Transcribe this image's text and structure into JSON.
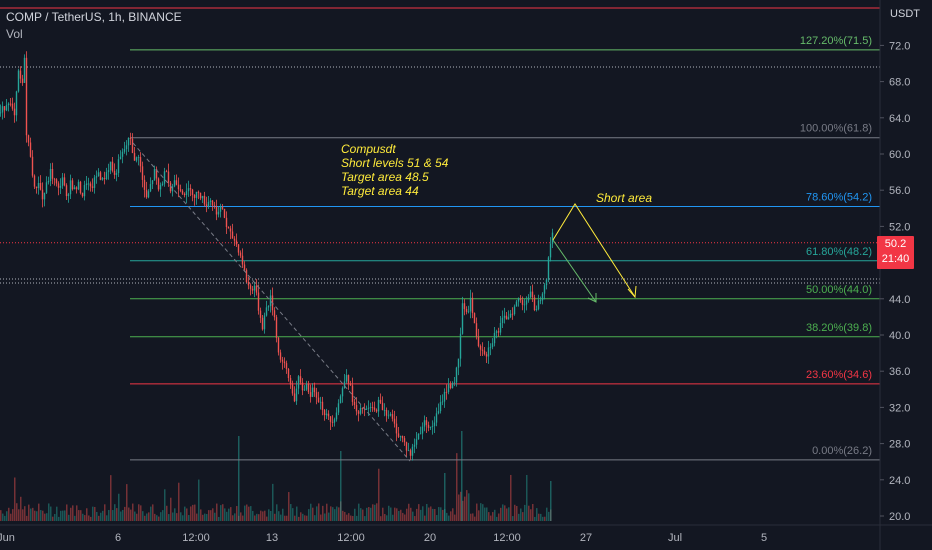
{
  "header": {
    "symbol_line": "COMP / TetherUS, 1h, BINANCE",
    "indicator": "Vol"
  },
  "price_axis": {
    "unit": "USDT",
    "ticks": [
      "72.0",
      "68.0",
      "64.0",
      "60.0",
      "56.0",
      "52.0",
      "48.0",
      "44.0",
      "40.0",
      "36.0",
      "32.0",
      "28.0",
      "24.0",
      "20.0"
    ]
  },
  "time_axis": {
    "ticks": [
      "Jun",
      "6",
      "12:00",
      "13",
      "12:00",
      "20",
      "12:00",
      "27",
      "Jul",
      "5"
    ]
  },
  "current_price": {
    "price": "50.2",
    "countdown": "21:40",
    "color": "#f23645"
  },
  "fib_levels": [
    {
      "label": "127.20%(71.5)",
      "value": 71.5,
      "color": "#66bb6a"
    },
    {
      "label": "100.00%(61.8)",
      "value": 61.8,
      "color": "#787b86"
    },
    {
      "label": "78.60%(54.2)",
      "value": 54.2,
      "color": "#2196f3"
    },
    {
      "label": "61.80%(48.2)",
      "value": 48.2,
      "color": "#26a69a"
    },
    {
      "label": "50.00%(44.0)",
      "value": 44.0,
      "color": "#4caf50"
    },
    {
      "label": "38.20%(39.8)",
      "value": 39.8,
      "color": "#4caf50"
    },
    {
      "label": "23.60%(34.6)",
      "value": 34.6,
      "color": "#f23645"
    },
    {
      "label": "0.00%(26.2)",
      "value": 26.2,
      "color": "#787b86"
    }
  ],
  "annotations": {
    "note_lines": [
      "Compusdt",
      "Short levels 51 & 54",
      "Target area 48.5",
      "Target area 44"
    ],
    "short_area": "Short area",
    "text_color": "#ffeb3b"
  },
  "chart_data": {
    "type": "candlestick",
    "y_range": [
      19.5,
      76.0
    ],
    "price_path": [
      [
        0,
        64.5
      ],
      [
        8,
        66
      ],
      [
        14,
        64
      ],
      [
        18,
        69
      ],
      [
        22,
        67.5
      ],
      [
        24,
        71
      ],
      [
        26,
        62
      ],
      [
        30,
        60
      ],
      [
        34,
        56
      ],
      [
        38,
        57
      ],
      [
        42,
        55
      ],
      [
        46,
        56.5
      ],
      [
        50,
        58
      ],
      [
        54,
        57
      ],
      [
        58,
        56
      ],
      [
        62,
        57.5
      ],
      [
        66,
        55
      ],
      [
        70,
        57
      ],
      [
        74,
        56
      ],
      [
        78,
        56.5
      ],
      [
        82,
        55.5
      ],
      [
        86,
        57
      ],
      [
        90,
        56
      ],
      [
        94,
        57
      ],
      [
        98,
        58
      ],
      [
        102,
        57
      ],
      [
        106,
        58
      ],
      [
        110,
        59
      ],
      [
        114,
        57.5
      ],
      [
        118,
        59
      ],
      [
        122,
        60
      ],
      [
        126,
        61
      ],
      [
        130,
        61.8
      ],
      [
        134,
        59
      ],
      [
        138,
        60
      ],
      [
        142,
        57
      ],
      [
        146,
        55
      ],
      [
        150,
        56.5
      ],
      [
        154,
        58
      ],
      [
        158,
        56
      ],
      [
        162,
        57
      ],
      [
        166,
        58.5
      ],
      [
        170,
        56
      ],
      [
        174,
        57
      ],
      [
        178,
        56.5
      ],
      [
        182,
        56
      ],
      [
        186,
        55.5
      ],
      [
        190,
        56.5
      ],
      [
        194,
        55
      ],
      [
        198,
        56
      ],
      [
        202,
        55
      ],
      [
        206,
        54.5
      ],
      [
        210,
        55
      ],
      [
        214,
        54
      ],
      [
        218,
        53.5
      ],
      [
        222,
        54
      ],
      [
        226,
        52
      ],
      [
        230,
        51
      ],
      [
        234,
        50.5
      ],
      [
        238,
        49.5
      ],
      [
        242,
        48
      ],
      [
        246,
        46
      ],
      [
        250,
        45
      ],
      [
        254,
        45.5
      ],
      [
        258,
        43
      ],
      [
        262,
        41
      ],
      [
        266,
        43
      ],
      [
        270,
        44
      ],
      [
        274,
        42
      ],
      [
        278,
        38
      ],
      [
        282,
        37
      ],
      [
        286,
        36
      ],
      [
        290,
        34.5
      ],
      [
        294,
        33
      ],
      [
        298,
        35
      ],
      [
        302,
        34
      ],
      [
        306,
        34.5
      ],
      [
        310,
        33.5
      ],
      [
        314,
        34
      ],
      [
        318,
        33
      ],
      [
        322,
        32
      ],
      [
        326,
        31
      ],
      [
        330,
        30.5
      ],
      [
        334,
        31
      ],
      [
        338,
        32.5
      ],
      [
        342,
        34
      ],
      [
        346,
        36
      ],
      [
        350,
        34
      ],
      [
        354,
        32
      ],
      [
        358,
        31
      ],
      [
        362,
        32
      ],
      [
        366,
        31.5
      ],
      [
        370,
        32
      ],
      [
        374,
        31.5
      ],
      [
        378,
        32.5
      ],
      [
        382,
        32
      ],
      [
        386,
        31.5
      ],
      [
        390,
        31
      ],
      [
        394,
        30
      ],
      [
        398,
        29
      ],
      [
        402,
        28.5
      ],
      [
        406,
        27.5
      ],
      [
        410,
        26.8
      ],
      [
        414,
        28
      ],
      [
        418,
        29
      ],
      [
        422,
        30
      ],
      [
        426,
        30.5
      ],
      [
        430,
        29.5
      ],
      [
        434,
        30.5
      ],
      [
        438,
        31.5
      ],
      [
        442,
        33
      ],
      [
        446,
        34
      ],
      [
        450,
        34.5
      ],
      [
        454,
        35
      ],
      [
        458,
        37
      ],
      [
        460,
        40
      ],
      [
        462,
        43.5
      ],
      [
        464,
        42.5
      ],
      [
        468,
        43
      ],
      [
        470,
        44
      ],
      [
        474,
        41
      ],
      [
        478,
        39
      ],
      [
        482,
        38.5
      ],
      [
        486,
        38
      ],
      [
        490,
        39
      ],
      [
        494,
        40
      ],
      [
        498,
        40.5
      ],
      [
        502,
        41.5
      ],
      [
        506,
        42
      ],
      [
        510,
        42.5
      ],
      [
        514,
        43
      ],
      [
        518,
        44
      ],
      [
        522,
        43.5
      ],
      [
        526,
        44
      ],
      [
        530,
        44.5
      ],
      [
        534,
        43
      ],
      [
        538,
        43.5
      ],
      [
        542,
        45
      ],
      [
        546,
        46.5
      ],
      [
        549,
        49
      ],
      [
        551,
        51.5
      ],
      [
        553,
        51
      ]
    ]
  }
}
